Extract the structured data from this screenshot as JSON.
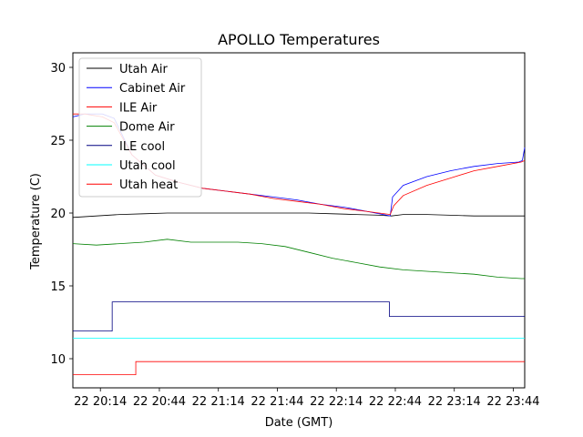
{
  "chart_data": {
    "type": "line",
    "title": "APOLLO Temperatures",
    "xlabel": "Date (GMT)",
    "ylabel": "Temperature (C)",
    "xlim": [
      20.0,
      23.83
    ],
    "ylim": [
      8.0,
      31.0
    ],
    "x_unit": "hours (GMT)",
    "x_ticks": [
      {
        "value": 20.2333,
        "label": "22 20:14"
      },
      {
        "value": 20.7333,
        "label": "22 20:44"
      },
      {
        "value": 21.2333,
        "label": "22 21:14"
      },
      {
        "value": 21.7333,
        "label": "22 21:44"
      },
      {
        "value": 22.2333,
        "label": "22 22:14"
      },
      {
        "value": 22.7333,
        "label": "22 22:44"
      },
      {
        "value": 23.2333,
        "label": "22 23:14"
      },
      {
        "value": 23.7333,
        "label": "22 23:44"
      }
    ],
    "y_ticks": [
      10,
      15,
      20,
      25,
      30
    ],
    "legend_position": "upper-left",
    "series": [
      {
        "name": "Utah Air",
        "color": "#000000",
        "x": [
          20.0,
          20.2,
          20.4,
          20.6,
          20.8,
          21.0,
          21.2,
          21.4,
          21.6,
          21.8,
          22.0,
          22.2,
          22.4,
          22.6,
          22.7,
          22.8,
          23.0,
          23.2,
          23.4,
          23.6,
          23.8,
          23.83
        ],
        "y": [
          19.7,
          19.8,
          19.9,
          19.95,
          20.0,
          20.0,
          20.0,
          20.0,
          20.0,
          20.0,
          20.0,
          19.95,
          19.9,
          19.85,
          19.8,
          19.9,
          19.9,
          19.85,
          19.8,
          19.8,
          19.8,
          19.8
        ]
      },
      {
        "name": "Cabinet Air",
        "color": "#0000ff",
        "x": [
          20.0,
          20.1,
          20.25,
          20.35,
          20.5,
          20.7,
          20.9,
          21.1,
          21.3,
          21.5,
          21.7,
          21.9,
          22.1,
          22.3,
          22.5,
          22.69,
          22.71,
          22.8,
          23.0,
          23.2,
          23.4,
          23.6,
          23.78,
          23.81,
          23.83
        ],
        "y": [
          26.6,
          26.8,
          26.8,
          26.5,
          24.0,
          22.6,
          22.1,
          21.7,
          21.5,
          21.3,
          21.1,
          20.9,
          20.6,
          20.4,
          20.1,
          19.8,
          21.1,
          21.9,
          22.5,
          22.9,
          23.2,
          23.4,
          23.5,
          23.6,
          24.5
        ]
      },
      {
        "name": "ILE Air",
        "color": "#ff0000",
        "x": [
          20.0,
          20.1,
          20.25,
          20.35,
          20.5,
          20.7,
          20.9,
          21.1,
          21.3,
          21.5,
          21.7,
          21.9,
          22.1,
          22.3,
          22.5,
          22.69,
          22.72,
          22.8,
          23.0,
          23.2,
          23.4,
          23.6,
          23.8,
          23.83
        ],
        "y": [
          26.8,
          26.8,
          26.6,
          26.2,
          24.0,
          22.6,
          22.1,
          21.7,
          21.5,
          21.3,
          21.0,
          20.8,
          20.6,
          20.3,
          20.1,
          19.9,
          20.5,
          21.2,
          21.9,
          22.4,
          22.9,
          23.2,
          23.5,
          23.6
        ]
      },
      {
        "name": "Dome Air",
        "color": "#008000",
        "x": [
          20.0,
          20.2,
          20.4,
          20.6,
          20.8,
          21.0,
          21.2,
          21.4,
          21.6,
          21.8,
          22.0,
          22.2,
          22.4,
          22.6,
          22.8,
          23.0,
          23.2,
          23.4,
          23.6,
          23.8,
          23.83
        ],
        "y": [
          17.9,
          17.8,
          17.9,
          18.0,
          18.2,
          18.0,
          18.0,
          18.0,
          17.9,
          17.7,
          17.3,
          16.9,
          16.6,
          16.3,
          16.1,
          16.0,
          15.9,
          15.8,
          15.6,
          15.5,
          15.5
        ]
      },
      {
        "name": "ILE cool",
        "color": "#000080",
        "step": true,
        "x": [
          20.0,
          20.3333,
          20.3333,
          22.6833,
          22.6833,
          23.83
        ],
        "y": [
          11.9,
          11.9,
          13.9,
          13.9,
          12.9,
          12.9
        ]
      },
      {
        "name": "Utah cool",
        "color": "#00ffff",
        "step": true,
        "x": [
          20.0,
          23.83
        ],
        "y": [
          11.4,
          11.4
        ]
      },
      {
        "name": "Utah heat",
        "color": "#ff0000",
        "step": true,
        "x": [
          20.0,
          20.5333,
          20.5333,
          23.83
        ],
        "y": [
          8.9,
          8.9,
          9.8,
          9.8
        ]
      }
    ]
  }
}
